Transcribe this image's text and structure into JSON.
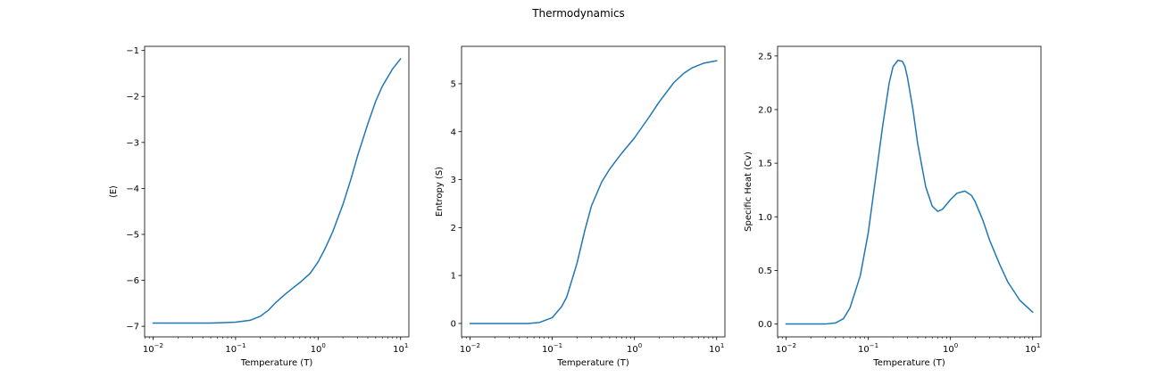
{
  "figure": {
    "suptitle": "Thermodynamics"
  },
  "colors": {
    "series": "#1f77b4"
  },
  "chart_data": [
    {
      "type": "line",
      "xlabel": "Temperature (T)",
      "ylabel": "⟨E⟩",
      "xscale": "log",
      "xlim": [
        0.0079,
        12.6
      ],
      "ylim": [
        -7.23,
        -0.91
      ],
      "xticks": [
        0.01,
        0.1,
        1,
        10
      ],
      "xtick_labels": [
        [
          "10",
          "−2"
        ],
        [
          "10",
          "−1"
        ],
        [
          "10",
          "0"
        ],
        [
          "10",
          "1"
        ]
      ],
      "yticks": [
        -7,
        -6,
        -5,
        -4,
        -3,
        -2,
        -1
      ],
      "ytick_labels": [
        "−7",
        "−6",
        "−5",
        "−4",
        "−3",
        "−2",
        "−1"
      ],
      "grid": false,
      "series": [
        {
          "x": [
            0.01,
            0.05,
            0.1,
            0.15,
            0.2,
            0.25,
            0.3,
            0.4,
            0.5,
            0.6,
            0.8,
            1.0,
            1.2,
            1.5,
            2.0,
            2.5,
            3.0,
            4.0,
            5.0,
            6.0,
            8.0,
            10.0
          ],
          "y": [
            -6.93,
            -6.93,
            -6.91,
            -6.87,
            -6.78,
            -6.65,
            -6.5,
            -6.3,
            -6.16,
            -6.05,
            -5.85,
            -5.6,
            -5.33,
            -4.95,
            -4.35,
            -3.8,
            -3.3,
            -2.6,
            -2.1,
            -1.78,
            -1.4,
            -1.18
          ]
        }
      ]
    },
    {
      "type": "line",
      "xlabel": "Temperature (T)",
      "ylabel": "Entropy (S)",
      "xscale": "log",
      "xlim": [
        0.0079,
        12.6
      ],
      "ylim": [
        -0.28,
        5.78
      ],
      "xticks": [
        0.01,
        0.1,
        1,
        10
      ],
      "xtick_labels": [
        [
          "10",
          "−2"
        ],
        [
          "10",
          "−1"
        ],
        [
          "10",
          "0"
        ],
        [
          "10",
          "1"
        ]
      ],
      "yticks": [
        0,
        1,
        2,
        3,
        4,
        5
      ],
      "ytick_labels": [
        "0",
        "1",
        "2",
        "3",
        "4",
        "5"
      ],
      "grid": false,
      "series": [
        {
          "x": [
            0.01,
            0.05,
            0.07,
            0.1,
            0.13,
            0.15,
            0.2,
            0.25,
            0.3,
            0.4,
            0.5,
            0.7,
            1.0,
            1.5,
            2.0,
            3.0,
            4.0,
            5.0,
            7.0,
            10.0
          ],
          "y": [
            0.0,
            0.0,
            0.02,
            0.12,
            0.35,
            0.55,
            1.25,
            1.95,
            2.45,
            2.95,
            3.22,
            3.55,
            3.87,
            4.3,
            4.62,
            5.02,
            5.22,
            5.33,
            5.43,
            5.48
          ]
        }
      ]
    },
    {
      "type": "line",
      "xlabel": "Temperature (T)",
      "ylabel": "Specific Heat (Cv)",
      "xscale": "log",
      "xlim": [
        0.0079,
        12.6
      ],
      "ylim": [
        -0.12,
        2.59
      ],
      "xticks": [
        0.01,
        0.1,
        1,
        10
      ],
      "xtick_labels": [
        [
          "10",
          "−2"
        ],
        [
          "10",
          "−1"
        ],
        [
          "10",
          "0"
        ],
        [
          "10",
          "1"
        ]
      ],
      "yticks": [
        0.0,
        0.5,
        1.0,
        1.5,
        2.0,
        2.5
      ],
      "ytick_labels": [
        "0.0",
        "0.5",
        "1.0",
        "1.5",
        "2.0",
        "2.5"
      ],
      "grid": false,
      "series": [
        {
          "x": [
            0.01,
            0.03,
            0.04,
            0.05,
            0.06,
            0.08,
            0.1,
            0.12,
            0.15,
            0.18,
            0.2,
            0.23,
            0.26,
            0.28,
            0.3,
            0.35,
            0.4,
            0.5,
            0.6,
            0.7,
            0.8,
            1.0,
            1.2,
            1.5,
            1.8,
            2.0,
            2.5,
            3.0,
            4.0,
            5.0,
            7.0,
            10.0
          ],
          "y": [
            0.0,
            0.0,
            0.01,
            0.05,
            0.15,
            0.45,
            0.85,
            1.3,
            1.85,
            2.25,
            2.4,
            2.46,
            2.45,
            2.4,
            2.3,
            2.0,
            1.68,
            1.28,
            1.1,
            1.05,
            1.07,
            1.16,
            1.22,
            1.24,
            1.2,
            1.14,
            0.96,
            0.78,
            0.55,
            0.39,
            0.22,
            0.11
          ]
        }
      ]
    }
  ]
}
